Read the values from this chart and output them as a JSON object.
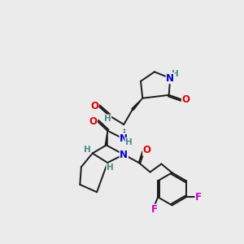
{
  "bg_color": "#ebebeb",
  "bond_color": "#1a1a1a",
  "bond_width": 1.4,
  "atom_colors": {
    "O": "#e00000",
    "N": "#0000cc",
    "F": "#cc00cc",
    "H": "#4a8a8a",
    "C": "#1a1a1a"
  },
  "font_size_atom": 8.5,
  "font_size_H": 7.5
}
